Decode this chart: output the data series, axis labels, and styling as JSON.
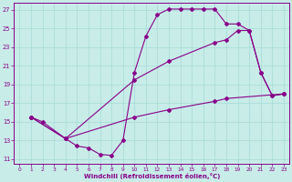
{
  "background_color": "#c8ece8",
  "grid_color": "#b0ddd8",
  "line_color": "#880088",
  "marker": "D",
  "marker_size": 2.0,
  "xlabel": "Windchill (Refroidissement éolien,°C)",
  "xlim": [
    -0.5,
    23.5
  ],
  "ylim": [
    10.5,
    27.8
  ],
  "xticks": [
    0,
    1,
    2,
    3,
    4,
    5,
    6,
    7,
    8,
    9,
    10,
    11,
    12,
    13,
    14,
    15,
    16,
    17,
    18,
    19,
    20,
    21,
    22,
    23
  ],
  "yticks": [
    11,
    13,
    15,
    17,
    19,
    21,
    23,
    25,
    27
  ],
  "main_curve": [
    [
      1,
      15.5
    ],
    [
      2,
      15.0
    ],
    [
      4,
      13.2
    ],
    [
      5,
      12.4
    ],
    [
      6,
      12.2
    ],
    [
      7,
      11.5
    ],
    [
      8,
      11.4
    ],
    [
      9,
      13.0
    ],
    [
      10,
      20.3
    ],
    [
      11,
      24.2
    ],
    [
      12,
      26.5
    ],
    [
      13,
      27.1
    ],
    [
      14,
      27.1
    ],
    [
      15,
      27.1
    ],
    [
      16,
      27.1
    ],
    [
      17,
      27.1
    ],
    [
      18,
      25.5
    ],
    [
      19,
      25.5
    ],
    [
      20,
      24.8
    ],
    [
      21,
      20.3
    ],
    [
      22,
      17.8
    ],
    [
      23,
      18.0
    ]
  ],
  "upper_diagonal": [
    [
      1,
      15.5
    ],
    [
      4,
      13.2
    ],
    [
      10,
      19.5
    ],
    [
      13,
      21.5
    ],
    [
      17,
      23.5
    ],
    [
      18,
      23.8
    ],
    [
      19,
      24.8
    ],
    [
      20,
      24.8
    ],
    [
      21,
      20.3
    ],
    [
      22,
      17.8
    ],
    [
      23,
      18.0
    ]
  ],
  "lower_diagonal": [
    [
      1,
      15.5
    ],
    [
      4,
      13.2
    ],
    [
      10,
      15.5
    ],
    [
      13,
      16.3
    ],
    [
      17,
      17.2
    ],
    [
      18,
      17.5
    ],
    [
      23,
      18.0
    ]
  ]
}
